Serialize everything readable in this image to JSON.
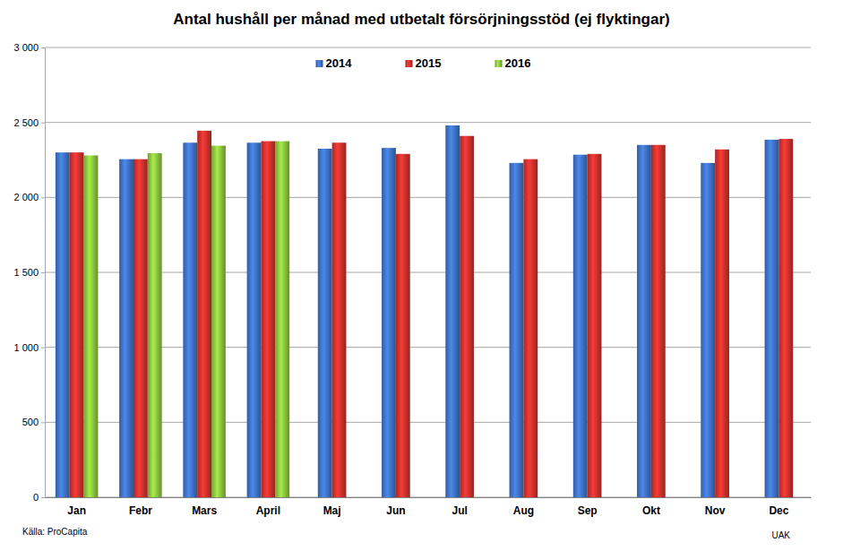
{
  "chart_data": {
    "type": "bar",
    "title": "Antal hushåll per månad med utbetalt försörjningsstöd (ej flyktingar)",
    "annotations": [
      "Källa: ProCapita",
      "UAK"
    ],
    "categories": [
      "Jan",
      "Febr",
      "Mars",
      "April",
      "Maj",
      "Jun",
      "Jul",
      "Aug",
      "Sep",
      "Okt",
      "Nov",
      "Dec"
    ],
    "series": [
      {
        "name": "2014",
        "color": "#3f73c6",
        "values": [
          2300,
          2255,
          2365,
          2365,
          2325,
          2330,
          2480,
          2230,
          2285,
          2350,
          2230,
          2385
        ]
      },
      {
        "name": "2015",
        "color": "#d0312d",
        "values": [
          2300,
          2255,
          2445,
          2375,
          2365,
          2290,
          2410,
          2255,
          2290,
          2350,
          2320,
          2390
        ]
      },
      {
        "name": "2016",
        "color": "#8cc63f",
        "values": [
          2280,
          2295,
          2345,
          2375,
          null,
          null,
          null,
          null,
          null,
          null,
          null,
          null
        ]
      }
    ],
    "ylim": [
      0,
      3000
    ],
    "yticks": [
      0,
      500,
      {
        "value": 1000,
        "label": "1 000"
      },
      {
        "value": 1500,
        "label": "1 500"
      },
      {
        "value": 2000,
        "label": "2 000"
      },
      {
        "value": 2500,
        "label": "2 500"
      },
      {
        "value": 3000,
        "label": "3 000"
      }
    ],
    "grid": true,
    "legend": "top"
  }
}
